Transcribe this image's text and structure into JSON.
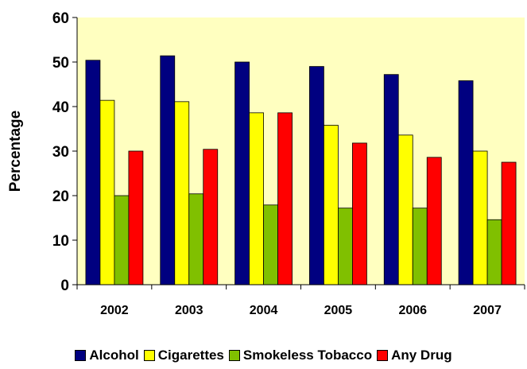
{
  "chart_data": {
    "type": "bar",
    "title": "",
    "xlabel": "",
    "ylabel": "Percentage",
    "ylim": [
      0,
      60
    ],
    "yticks": [
      "0",
      "10",
      "20",
      "30",
      "40",
      "50",
      "60"
    ],
    "categories": [
      "2002",
      "2003",
      "2004",
      "2005",
      "2006",
      "2007"
    ],
    "grid": false,
    "legend_position": "bottom",
    "plot_background": "#FFFFC0",
    "series": [
      {
        "name": "Alcohol",
        "color": "#000080",
        "values": [
          50.4,
          51.4,
          50.0,
          49.0,
          47.2,
          45.8
        ]
      },
      {
        "name": "Cigarettes",
        "color": "#FFFF00",
        "values": [
          41.4,
          41.1,
          38.6,
          35.8,
          33.6,
          30.0
        ]
      },
      {
        "name": "Smokeless Tobacco",
        "color": "#80C000",
        "values": [
          20.0,
          20.4,
          17.9,
          17.2,
          17.2,
          14.6
        ]
      },
      {
        "name": "Any Drug",
        "color": "#FF0000",
        "values": [
          30.0,
          30.4,
          38.6,
          31.8,
          28.6,
          27.5
        ]
      }
    ]
  }
}
